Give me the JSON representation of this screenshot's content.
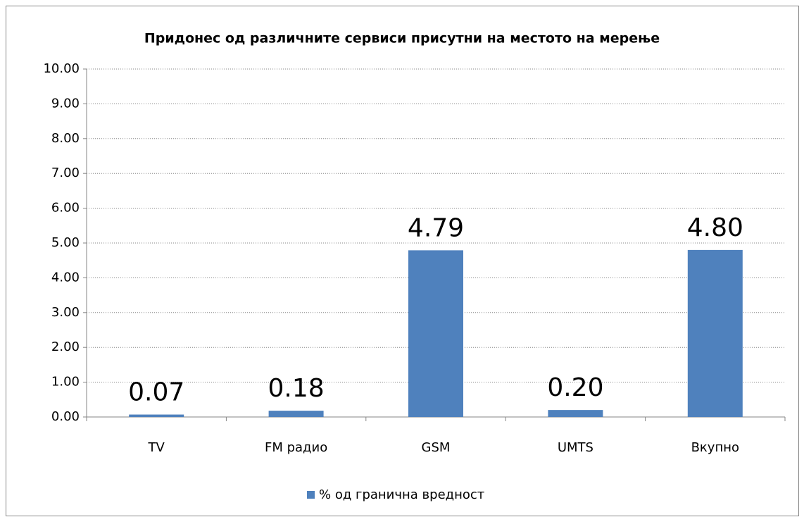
{
  "chart_data": {
    "type": "bar",
    "title": "Придонес од различните сервиси присутни на местото на мерење",
    "categories": [
      "TV",
      "FM радио",
      "GSM",
      "UMTS",
      "Вкупно"
    ],
    "series": [
      {
        "name": "% од гранична вредност",
        "color": "#4f81bd",
        "values": [
          0.07,
          0.18,
          4.79,
          0.2,
          4.8
        ],
        "value_labels": [
          "0.07",
          "0.18",
          "4.79",
          "0.20",
          "4.80"
        ]
      }
    ],
    "ylim": [
      0,
      10
    ],
    "yticks": [
      {
        "value": 0,
        "label": "0.00"
      },
      {
        "value": 1,
        "label": "1.00"
      },
      {
        "value": 2,
        "label": "2.00"
      },
      {
        "value": 3,
        "label": "3.00"
      },
      {
        "value": 4,
        "label": "4.00"
      },
      {
        "value": 5,
        "label": "5.00"
      },
      {
        "value": 6,
        "label": "6.00"
      },
      {
        "value": 7,
        "label": "7.00"
      },
      {
        "value": 8,
        "label": "8.00"
      },
      {
        "value": 9,
        "label": "9.00"
      },
      {
        "value": 10,
        "label": "10.00"
      }
    ],
    "grid": true,
    "legend": "bottom"
  }
}
